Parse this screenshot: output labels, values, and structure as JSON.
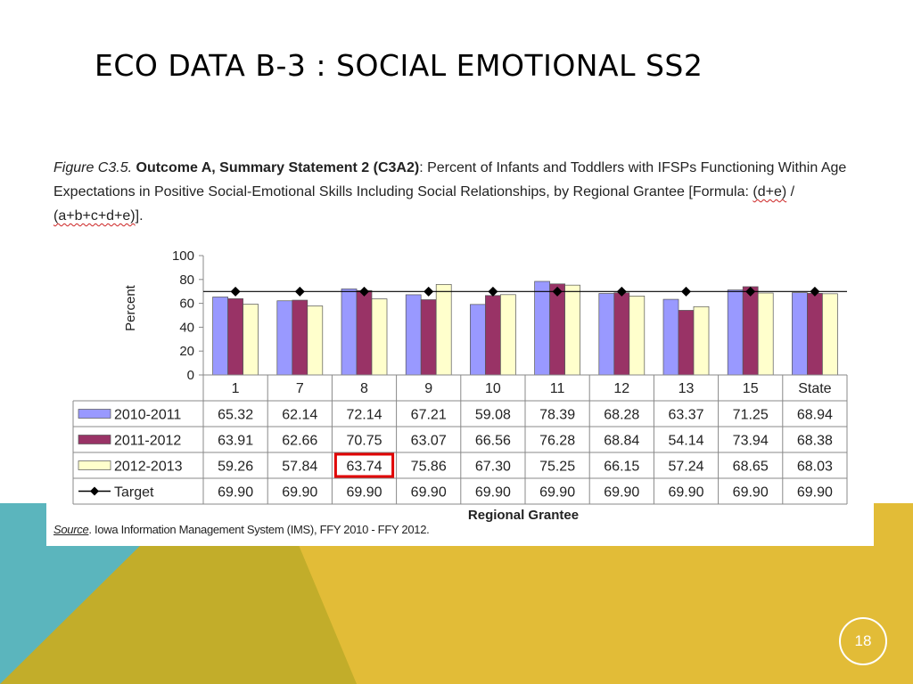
{
  "slide": {
    "title": "ECO DATA B-3 : SOCIAL EMOTIONAL SS2",
    "page_number": "18",
    "colors": {
      "teal": "#5bb5bd",
      "olive": "#c2ad2a",
      "gold": "#e2bc37"
    }
  },
  "figure": {
    "caption_italic": "Figure  C3.5.",
    "caption_bold": "Outcome A, Summary Statement 2 (C3A2)",
    "caption_rest": ":  Percent of Infants and Toddlers with IFSPs Functioning Within Age Expectations in Positive Social-Emotional Skills Including Social Relationships, by Regional Grantee  [Formula: ",
    "formula_numerator": "(d+e)",
    "formula_separator": " / ",
    "formula_denominator": "(a+b+c+d+e)",
    "formula_end": "].",
    "source_label": "Source",
    "source_text": ". Iowa Information Management System (IMS), FFY 2010 - FFY 2012."
  },
  "chart_data": {
    "type": "bar",
    "ylabel": "Percent",
    "xlabel": "Regional Grantee",
    "ylim": [
      0,
      100
    ],
    "yticks": [
      0,
      20,
      40,
      60,
      80,
      100
    ],
    "categories": [
      "1",
      "7",
      "8",
      "9",
      "10",
      "11",
      "12",
      "13",
      "15",
      "State"
    ],
    "series": [
      {
        "name": "2010-2011",
        "type": "bar",
        "color": "#9999ff",
        "values": [
          65.32,
          62.14,
          72.14,
          67.21,
          59.08,
          78.39,
          68.28,
          63.37,
          71.25,
          68.94
        ]
      },
      {
        "name": "2011-2012",
        "type": "bar",
        "color": "#993366",
        "values": [
          63.91,
          62.66,
          70.75,
          63.07,
          66.56,
          76.28,
          68.84,
          54.14,
          73.94,
          68.38
        ]
      },
      {
        "name": "2012-2013",
        "type": "bar",
        "color": "#ffffcc",
        "values": [
          59.26,
          57.84,
          63.74,
          75.86,
          67.3,
          75.25,
          66.15,
          57.24,
          68.65,
          68.03
        ]
      },
      {
        "name": "Target",
        "type": "line",
        "color": "#000000",
        "values": [
          69.9,
          69.9,
          69.9,
          69.9,
          69.9,
          69.9,
          69.9,
          69.9,
          69.9,
          69.9
        ]
      }
    ],
    "value_labels": [
      [
        "65.32",
        "62.14",
        "72.14",
        "67.21",
        "59.08",
        "78.39",
        "68.28",
        "63.37",
        "71.25",
        "68.94"
      ],
      [
        "63.91",
        "62.66",
        "70.75",
        "63.07",
        "66.56",
        "76.28",
        "68.84",
        "54.14",
        "73.94",
        "68.38"
      ],
      [
        "59.26",
        "57.84",
        "63.74",
        "75.86",
        "67.30",
        "75.25",
        "66.15",
        "57.24",
        "68.65",
        "68.03"
      ],
      [
        "69.90",
        "69.90",
        "69.90",
        "69.90",
        "69.90",
        "69.90",
        "69.90",
        "69.90",
        "69.90",
        "69.90"
      ]
    ],
    "grid": false,
    "legend": "data-table-left",
    "highlight": {
      "series_index": 2,
      "category_index": 2,
      "color": "#e00000"
    }
  }
}
